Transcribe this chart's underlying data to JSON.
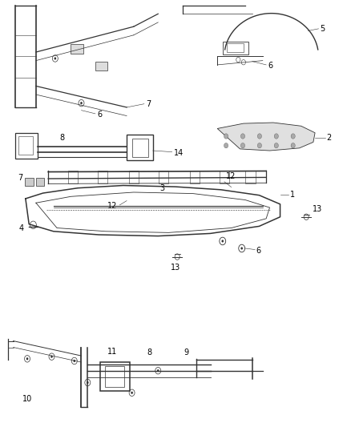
{
  "background_color": "#ffffff",
  "line_color": "#333333",
  "text_color": "#000000",
  "fig_width": 4.38,
  "fig_height": 5.33,
  "dpi": 100
}
